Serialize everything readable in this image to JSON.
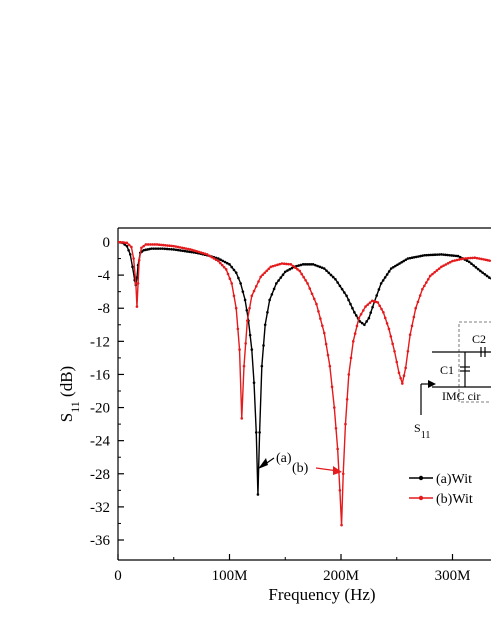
{
  "chart_data": {
    "type": "line",
    "xlabel": "Frequency (Hz)",
    "ylabel_main": "S",
    "ylabel_sub": "11",
    "ylabel_unit": " (dB)",
    "xlim": [
      0,
      335
    ],
    "ylim": [
      -38,
      1.5
    ],
    "x_unit_note": "MHz",
    "xticks": [
      {
        "value": 0,
        "label": "0"
      },
      {
        "value": 100,
        "label": "100M"
      },
      {
        "value": 200,
        "label": "200M"
      },
      {
        "value": 300,
        "label": "300M"
      }
    ],
    "yticks": [
      0,
      -4,
      -8,
      -12,
      -16,
      -20,
      -24,
      -28,
      -32,
      -36
    ],
    "ytick_labels": [
      "0",
      "-4",
      "-8",
      "-12",
      "-16",
      "-20",
      "-24",
      "-28",
      "-32",
      "-36"
    ],
    "series": [
      {
        "name": "(a)Wit",
        "color": "#000000",
        "points": [
          [
            0,
            0
          ],
          [
            4,
            -0.1
          ],
          [
            8,
            -0.5
          ],
          [
            11,
            -1.5
          ],
          [
            13,
            -3
          ],
          [
            15,
            -4.6
          ],
          [
            16,
            -5.2
          ],
          [
            17,
            -4.3
          ],
          [
            18,
            -2.8
          ],
          [
            20,
            -1.3
          ],
          [
            23,
            -1
          ],
          [
            30,
            -0.8
          ],
          [
            40,
            -0.8
          ],
          [
            50,
            -0.9
          ],
          [
            60,
            -1.1
          ],
          [
            70,
            -1.3
          ],
          [
            80,
            -1.6
          ],
          [
            90,
            -2
          ],
          [
            100,
            -2.7
          ],
          [
            106,
            -3.7
          ],
          [
            110,
            -5
          ],
          [
            114,
            -7
          ],
          [
            117,
            -9.5
          ],
          [
            120,
            -13
          ],
          [
            122,
            -17
          ],
          [
            124,
            -23
          ],
          [
            125.5,
            -30.5
          ],
          [
            127,
            -23
          ],
          [
            129,
            -15
          ],
          [
            132,
            -10
          ],
          [
            136,
            -7
          ],
          [
            142,
            -5
          ],
          [
            150,
            -3.6
          ],
          [
            158,
            -3
          ],
          [
            166,
            -2.7
          ],
          [
            175,
            -2.7
          ],
          [
            185,
            -3.2
          ],
          [
            195,
            -4.5
          ],
          [
            205,
            -6.5
          ],
          [
            212,
            -8.5
          ],
          [
            217,
            -9.6
          ],
          [
            221,
            -10
          ],
          [
            225,
            -9.2
          ],
          [
            230,
            -7.2
          ],
          [
            236,
            -5
          ],
          [
            245,
            -3.2
          ],
          [
            260,
            -2
          ],
          [
            275,
            -1.6
          ],
          [
            290,
            -1.5
          ],
          [
            305,
            -1.7
          ],
          [
            315,
            -2.4
          ],
          [
            325,
            -3.5
          ],
          [
            335,
            -4.5
          ]
        ]
      },
      {
        "name": "(b)Wit",
        "color": "#e41a1c",
        "points": [
          [
            0,
            0
          ],
          [
            8,
            -0.1
          ],
          [
            12,
            -0.6
          ],
          [
            14,
            -2
          ],
          [
            16,
            -5
          ],
          [
            17,
            -7.8
          ],
          [
            18,
            -5
          ],
          [
            19,
            -2.2
          ],
          [
            21,
            -0.7
          ],
          [
            25,
            -0.3
          ],
          [
            35,
            -0.3
          ],
          [
            50,
            -0.5
          ],
          [
            65,
            -0.9
          ],
          [
            80,
            -1.5
          ],
          [
            90,
            -2.3
          ],
          [
            97,
            -3.3
          ],
          [
            102,
            -5
          ],
          [
            106,
            -8
          ],
          [
            109,
            -13
          ],
          [
            111,
            -21.3
          ],
          [
            113,
            -15
          ],
          [
            116,
            -9.5
          ],
          [
            120,
            -6.5
          ],
          [
            128,
            -4.2
          ],
          [
            137,
            -3
          ],
          [
            147,
            -2.6
          ],
          [
            155,
            -2.7
          ],
          [
            163,
            -3.5
          ],
          [
            170,
            -5
          ],
          [
            178,
            -7.5
          ],
          [
            185,
            -11
          ],
          [
            190,
            -15
          ],
          [
            194,
            -20
          ],
          [
            197,
            -25
          ],
          [
            199,
            -30
          ],
          [
            200.5,
            -34.2
          ],
          [
            202,
            -28
          ],
          [
            204,
            -22
          ],
          [
            207,
            -16
          ],
          [
            211,
            -12
          ],
          [
            216,
            -9.2
          ],
          [
            222,
            -7.8
          ],
          [
            228,
            -7.1
          ],
          [
            233,
            -7.3
          ],
          [
            238,
            -8.5
          ],
          [
            243,
            -10.5
          ],
          [
            248,
            -13.2
          ],
          [
            252,
            -15.8
          ],
          [
            255,
            -17.1
          ],
          [
            258,
            -15.2
          ],
          [
            262,
            -11.2
          ],
          [
            267,
            -8
          ],
          [
            273,
            -5.7
          ],
          [
            280,
            -4.1
          ],
          [
            290,
            -3
          ],
          [
            300,
            -2.3
          ],
          [
            310,
            -2
          ],
          [
            320,
            -1.9
          ],
          [
            328,
            -2.1
          ],
          [
            335,
            -2.3
          ]
        ]
      }
    ],
    "annotations": [
      {
        "label": "(a)",
        "x": 126,
        "y": -28.8
      },
      {
        "label": "(b)",
        "x": 201,
        "y": -31.7
      }
    ],
    "legend": {
      "position": "right",
      "entries": [
        "(a)Wit",
        "(b)Wit"
      ]
    },
    "inset": {
      "labels": [
        "C2",
        "C1",
        "IMC cir",
        "S",
        "11"
      ]
    }
  }
}
